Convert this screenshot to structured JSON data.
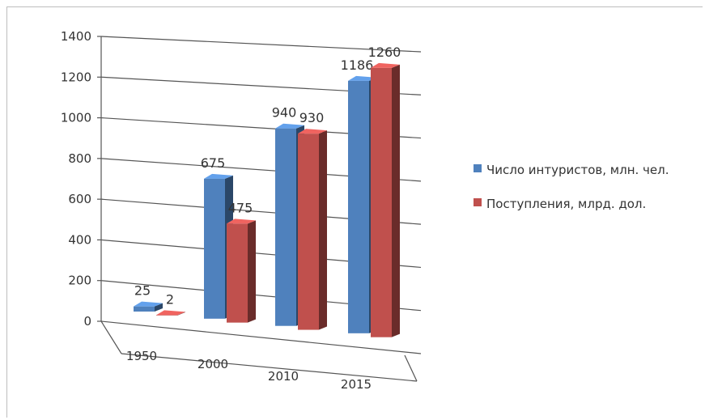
{
  "chart_data": {
    "type": "bar",
    "categories": [
      "1950",
      "2000",
      "2010",
      "2015"
    ],
    "series": [
      {
        "name": "Число интуристов, млн. чел.",
        "values": [
          25,
          675,
          940,
          1186
        ],
        "color": "#4f81bd"
      },
      {
        "name": "Поступления, млрд. дол.",
        "values": [
          2,
          475,
          930,
          1260
        ],
        "color": "#c0504d"
      }
    ],
    "yticks": [
      0,
      200,
      400,
      600,
      800,
      1000,
      1200,
      1400
    ],
    "ylim": [
      0,
      1400
    ],
    "grid": true,
    "legend": "right",
    "three_d": true
  }
}
